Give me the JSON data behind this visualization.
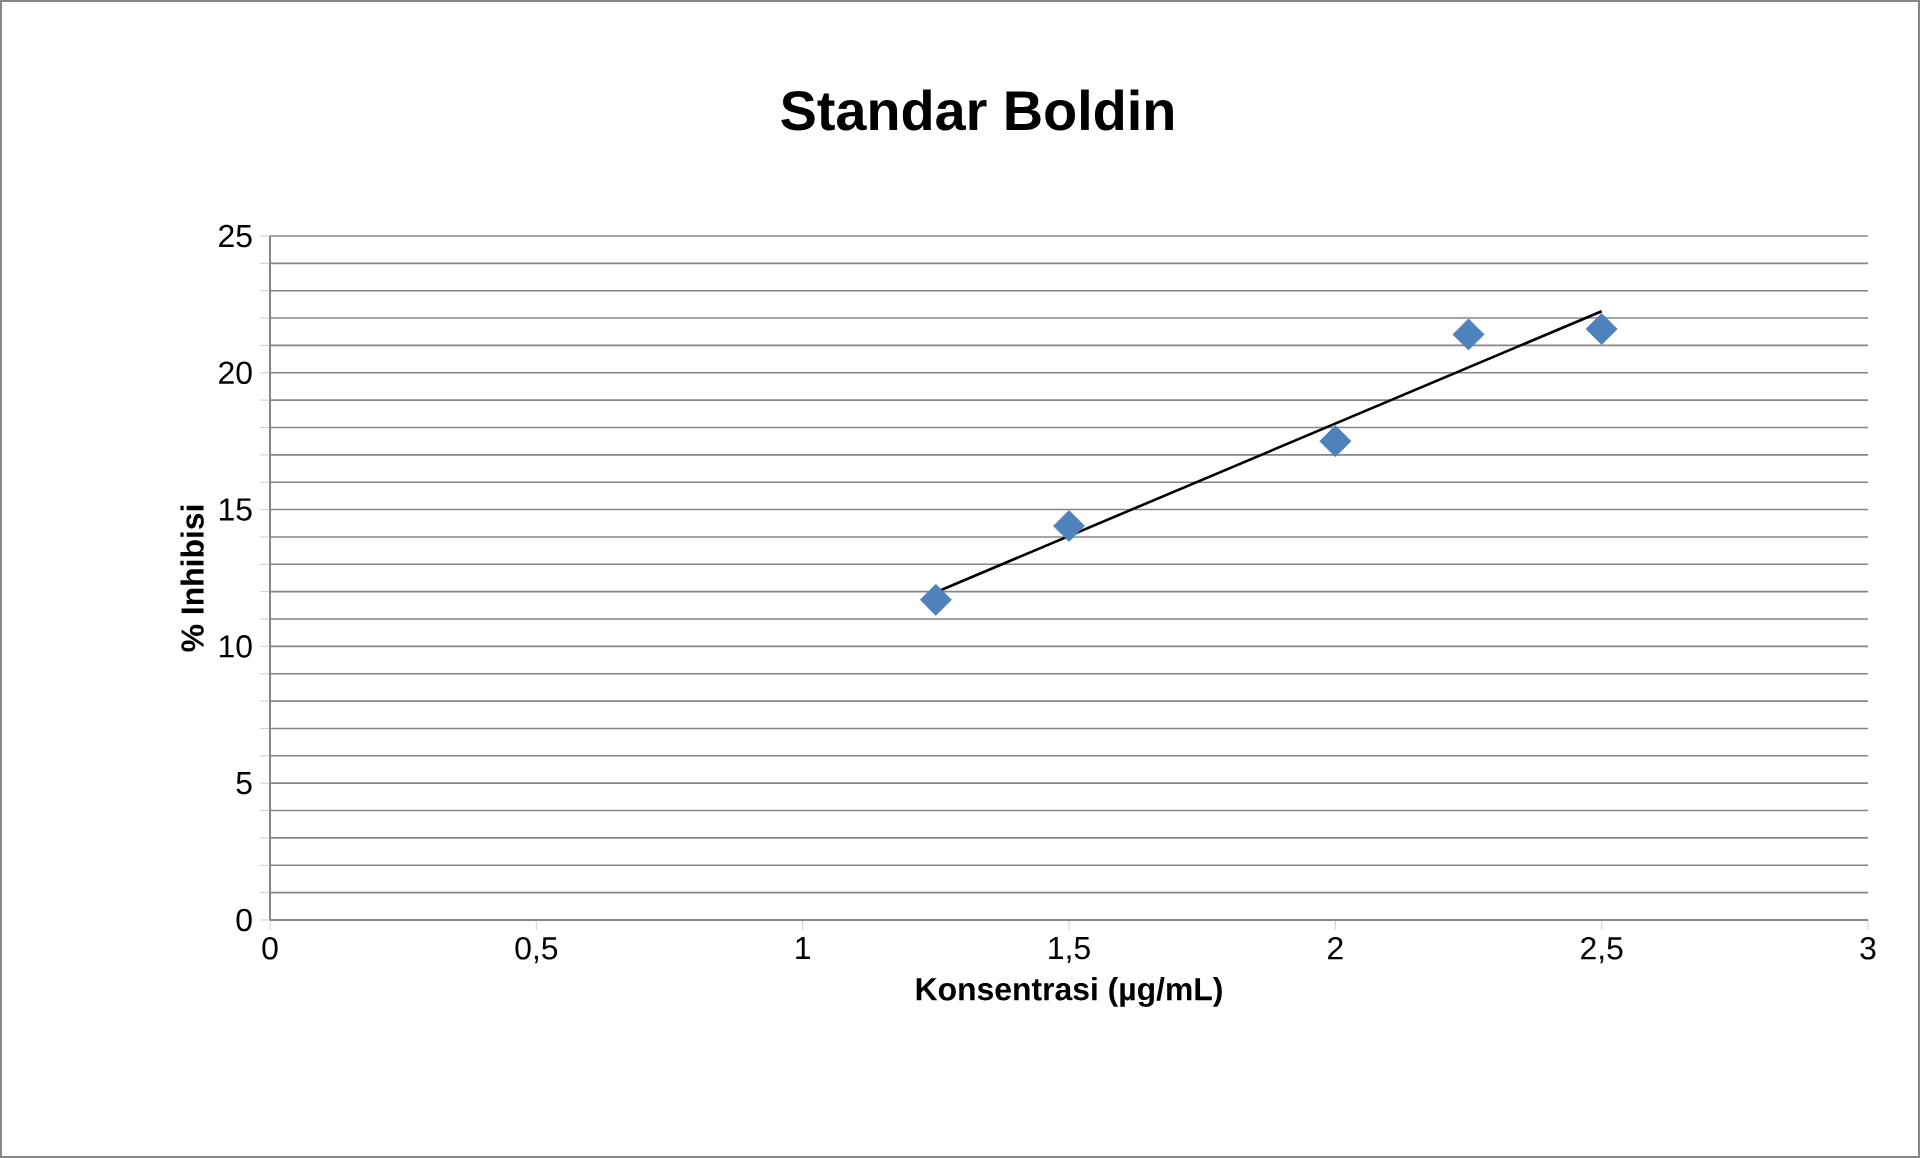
{
  "chart_data": {
    "type": "scatter",
    "title": "Standar Boldin",
    "xlabel": "Konsentrasi (µg/mL)",
    "ylabel": "% Inhibisi",
    "xlim": [
      0,
      3
    ],
    "ylim": [
      0,
      25
    ],
    "xticks": [
      0,
      {
        "value": 0.5,
        "label": "0,5"
      },
      1,
      {
        "value": 1.5,
        "label": "1,5"
      },
      2,
      {
        "value": 2.5,
        "label": "2,5"
      },
      3
    ],
    "yticks": [
      0,
      {
        "value": 1,
        "label": null
      },
      {
        "value": 2,
        "label": null
      },
      {
        "value": 3,
        "label": null
      },
      {
        "value": 4,
        "label": null
      },
      5,
      {
        "value": 6,
        "label": null
      },
      {
        "value": 7,
        "label": null
      },
      {
        "value": 8,
        "label": null
      },
      {
        "value": 9,
        "label": null
      },
      10,
      {
        "value": 11,
        "label": null
      },
      {
        "value": 12,
        "label": null
      },
      {
        "value": 13,
        "label": null
      },
      {
        "value": 14,
        "label": null
      },
      15,
      {
        "value": 16,
        "label": null
      },
      {
        "value": 17,
        "label": null
      },
      {
        "value": 18,
        "label": null
      },
      {
        "value": 19,
        "label": null
      },
      20,
      {
        "value": 21,
        "label": null
      },
      {
        "value": 22,
        "label": null
      },
      {
        "value": 23,
        "label": null
      },
      {
        "value": 24,
        "label": null
      },
      25
    ],
    "grid": "y",
    "series": [
      {
        "marker": "diamond",
        "color": "#4f81bd",
        "x": [
          1.25,
          1.5,
          2,
          2.25,
          2.5
        ],
        "values": [
          11.7,
          14.4,
          17.5,
          21.4,
          21.6
        ]
      },
      {
        "type": "line",
        "marker": "none",
        "color": "#000000",
        "x": [
          1.25,
          2.5
        ],
        "values": [
          11.98,
          22.25
        ]
      }
    ]
  }
}
